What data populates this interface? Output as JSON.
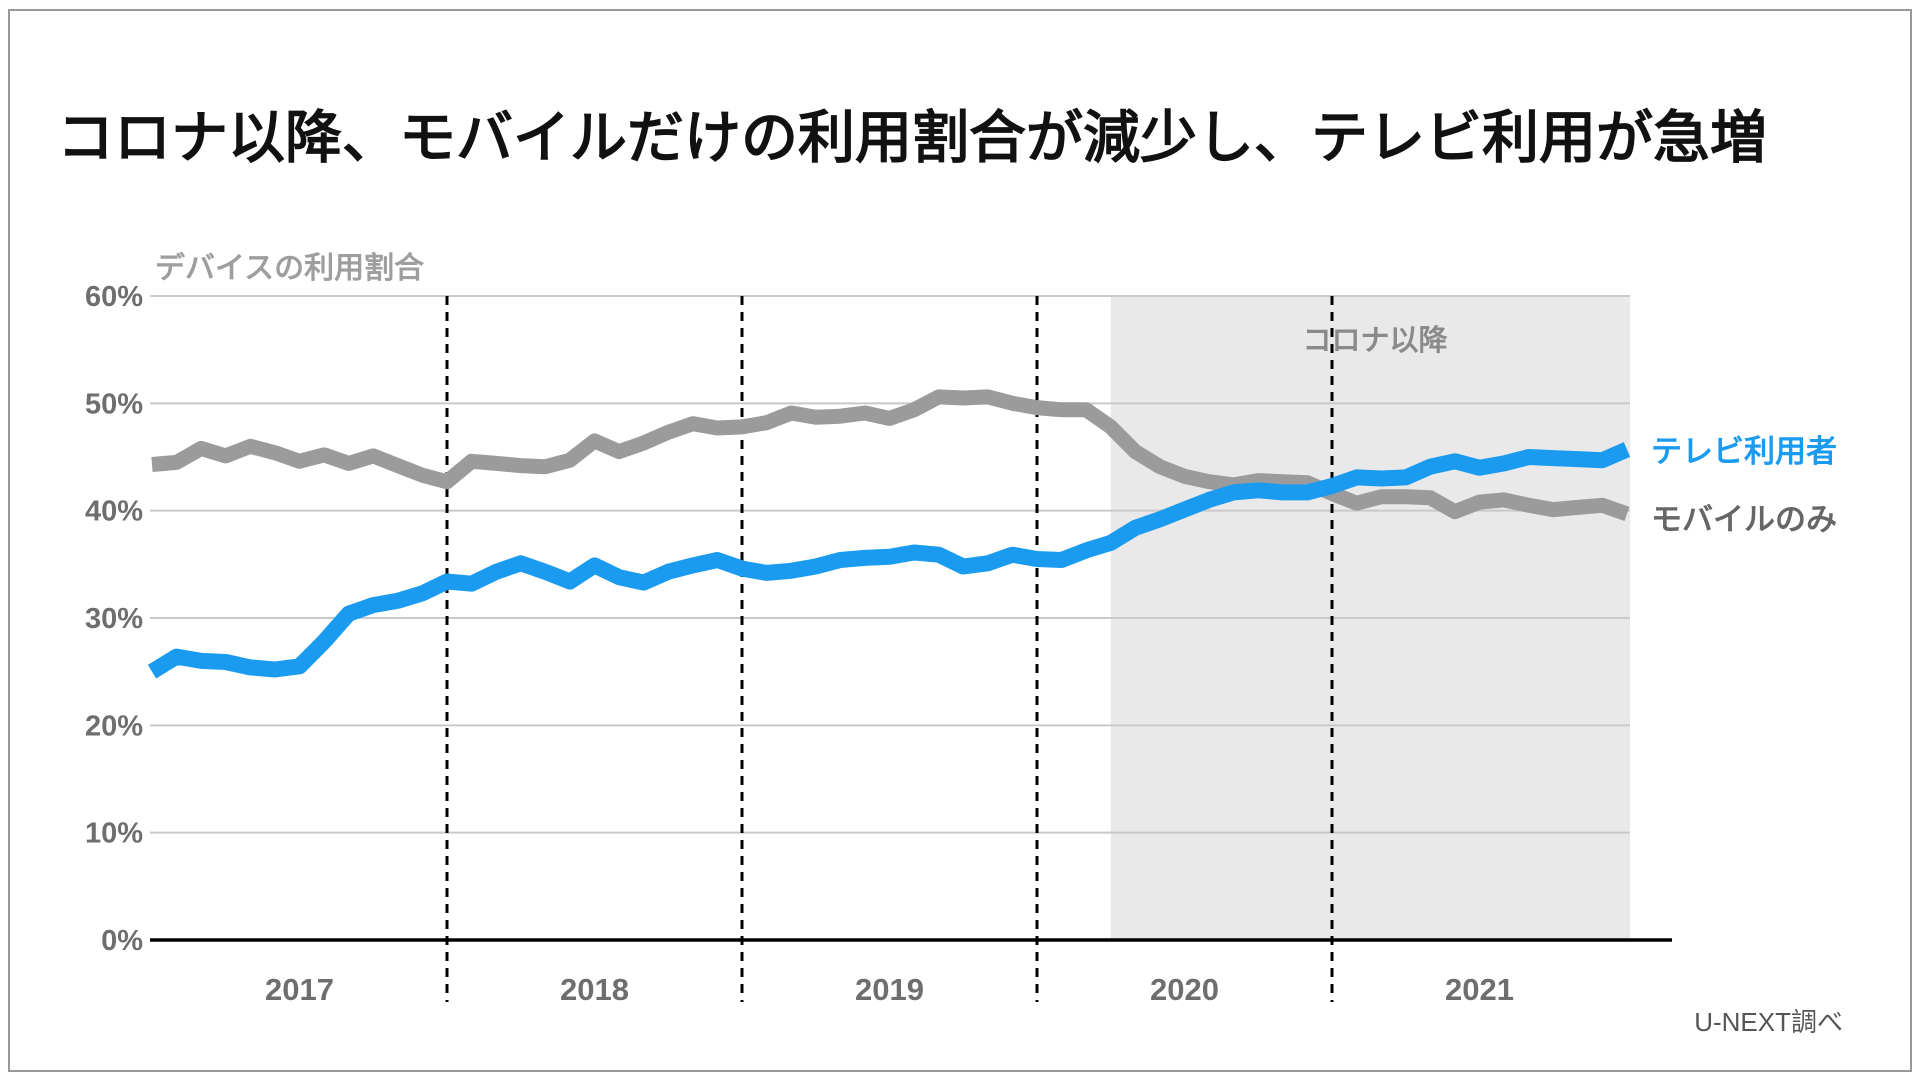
{
  "title": "コロナ以降、モバイルだけの利用割合が減少し、テレビ利用が急増",
  "chart": {
    "subtitle": "デバイスの利用割合",
    "covid_label": "コロナ以降"
  },
  "legend": {
    "tv": "テレビ利用者",
    "mobile": "モバイルのみ"
  },
  "source": "U-NEXT調べ",
  "colors": {
    "tv_line": "#1a9bf0",
    "mobile_line": "#9b9b9b",
    "covid_shade": "#e9e9e9",
    "gridline": "#c9c9c9",
    "axis": "#000000",
    "tick_label": "#6e6e6e",
    "subtitle_text": "#9e9e9e",
    "covid_label_text": "#8a8a8a",
    "legend_mobile_text": "#666666",
    "source_text": "#555555",
    "title_text": "#111111",
    "card_border": "#999999"
  },
  "chart_data": {
    "type": "line",
    "title": "デバイスの利用割合",
    "xlabel": "",
    "ylabel": "デバイスの利用割合",
    "x_unit": "month",
    "x_start": "2017-01",
    "x_end": "2022-01",
    "x_tick_labels": [
      "2017",
      "2018",
      "2019",
      "2020",
      "2021"
    ],
    "y_tick_labels": [
      "0%",
      "10%",
      "20%",
      "30%",
      "40%",
      "50%",
      "60%"
    ],
    "ylim": [
      0,
      60
    ],
    "y_tick_step": 10,
    "grid": "horizontal",
    "annotation": {
      "label": "コロナ以降",
      "shade_start": "2020-04",
      "shade_end": "2022-01"
    },
    "legend_position": "right-of-line-ends",
    "series": [
      {
        "name": "テレビ利用者",
        "color": "#1a9bf0",
        "values": [
          25.0,
          26.4,
          26.0,
          25.9,
          25.4,
          25.2,
          25.5,
          27.8,
          30.4,
          31.2,
          31.6,
          32.3,
          33.4,
          33.2,
          34.3,
          35.1,
          34.3,
          33.4,
          34.9,
          33.8,
          33.3,
          34.3,
          34.9,
          35.4,
          34.6,
          34.2,
          34.4,
          34.8,
          35.4,
          35.6,
          35.7,
          36.1,
          35.9,
          34.8,
          35.1,
          35.9,
          35.5,
          35.4,
          36.3,
          37.0,
          38.4,
          39.2,
          40.1,
          41.0,
          41.7,
          41.9,
          41.7,
          41.7,
          42.3,
          43.1,
          43.0,
          43.1,
          44.1,
          44.6,
          44.0,
          44.4,
          45.0,
          44.9,
          44.8,
          44.7,
          45.7
        ]
      },
      {
        "name": "モバイルのみ",
        "color": "#9b9b9b",
        "values": [
          44.3,
          44.5,
          45.8,
          45.1,
          46.0,
          45.4,
          44.6,
          45.2,
          44.4,
          45.1,
          44.2,
          43.3,
          42.7,
          44.6,
          44.4,
          44.2,
          44.1,
          44.7,
          46.5,
          45.5,
          46.3,
          47.3,
          48.1,
          47.7,
          47.8,
          48.2,
          49.1,
          48.7,
          48.8,
          49.1,
          48.6,
          49.4,
          50.6,
          50.5,
          50.6,
          50.0,
          49.6,
          49.4,
          49.4,
          47.8,
          45.5,
          44.1,
          43.2,
          42.7,
          42.4,
          42.8,
          42.7,
          42.6,
          41.6,
          40.7,
          41.3,
          41.3,
          41.2,
          39.9,
          40.8,
          41.0,
          40.5,
          40.1,
          40.3,
          40.5,
          39.7
        ]
      }
    ]
  }
}
